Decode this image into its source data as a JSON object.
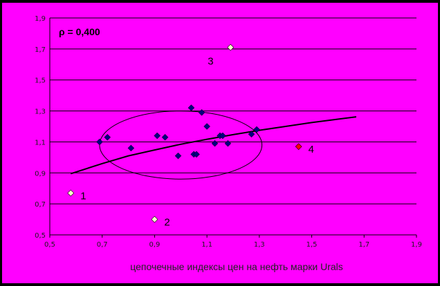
{
  "chart_data": {
    "type": "scatter",
    "title": "",
    "xlabel": "цепочечные индексы цен на нефть марки Urals",
    "ylabel": "",
    "xlim": [
      0.5,
      1.9
    ],
    "ylim": [
      0.5,
      1.9
    ],
    "x_ticks": [
      "0,5",
      "0,7",
      "0,9",
      "1,1",
      "1,3",
      "1,5",
      "1,7",
      "1,9"
    ],
    "y_ticks": [
      "0,5",
      "0,7",
      "0,9",
      "1,1",
      "1,3",
      "1,5",
      "1,7",
      "1,9"
    ],
    "grid": "horizontal",
    "background_color": "#FF00FF",
    "correlation_label": "ρ = 0,400",
    "series": [
      {
        "marker": "diamond",
        "color": "#000080",
        "points": [
          [
            0.69,
            1.1
          ],
          [
            0.72,
            1.13
          ],
          [
            0.81,
            1.06
          ],
          [
            0.91,
            1.14
          ],
          [
            0.94,
            1.13
          ],
          [
            0.99,
            1.01
          ],
          [
            1.04,
            1.32
          ],
          [
            1.05,
            1.02
          ],
          [
            1.06,
            1.02
          ],
          [
            1.08,
            1.29
          ],
          [
            1.1,
            1.2
          ],
          [
            1.13,
            1.09
          ],
          [
            1.15,
            1.14
          ],
          [
            1.16,
            1.14
          ],
          [
            1.18,
            1.09
          ],
          [
            1.27,
            1.15
          ],
          [
            1.29,
            1.18
          ]
        ]
      }
    ],
    "outliers": [
      {
        "label": "1",
        "x": 0.58,
        "y": 0.77,
        "color": "#FFFFCC"
      },
      {
        "label": "2",
        "x": 0.9,
        "y": 0.6,
        "color": "#FFFFCC"
      },
      {
        "label": "3",
        "x": 1.19,
        "y": 1.71,
        "color": "#FFFFCC"
      },
      {
        "label": "4",
        "x": 1.45,
        "y": 1.07,
        "color": "#FF0000"
      }
    ],
    "trendline": {
      "type": "logarithmic",
      "x": [
        0.58,
        0.7,
        0.8,
        0.9,
        1.0,
        1.1,
        1.2,
        1.3,
        1.4,
        1.5,
        1.6,
        1.67
      ],
      "y": [
        0.895,
        0.96,
        1.01,
        1.048,
        1.085,
        1.117,
        1.147,
        1.175,
        1.2,
        1.225,
        1.247,
        1.262
      ]
    },
    "ellipse": {
      "cx": 1.0,
      "cy": 1.08,
      "rx": 0.31,
      "ry": 0.22
    }
  }
}
